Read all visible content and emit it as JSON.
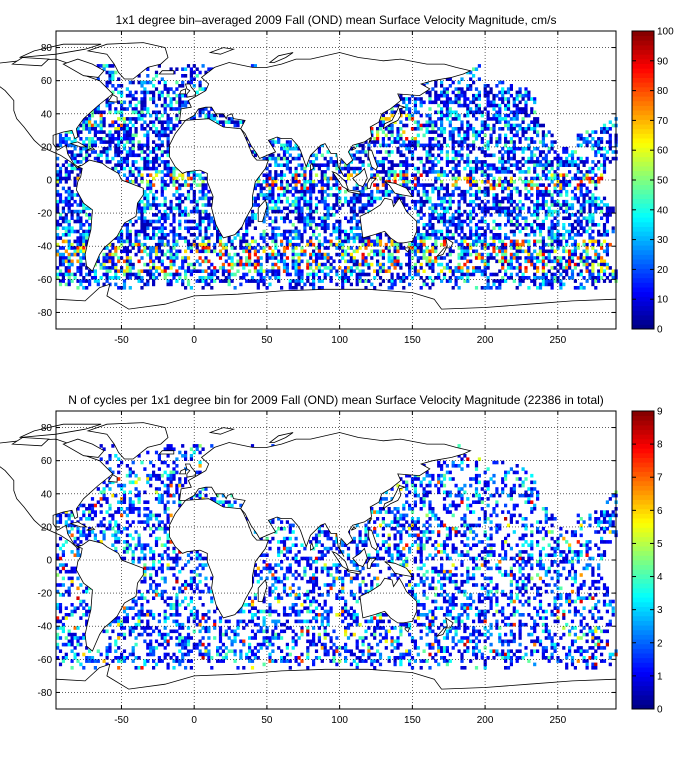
{
  "chart_data": [
    {
      "type": "heatmap",
      "title": "1x1 degree bin–averaged 2009 Fall (OND) mean Surface Velocity Magnitude, cm/s",
      "xlim": [
        -95,
        290
      ],
      "ylim": [
        -90,
        90
      ],
      "x_ticks": [
        -50,
        0,
        50,
        100,
        150,
        200,
        250
      ],
      "y_ticks": [
        80,
        60,
        40,
        20,
        0,
        -20,
        -40,
        -60,
        -80
      ],
      "grid": true,
      "grid_style": "dotted",
      "coastlines": true,
      "colorbar": {
        "min": 0,
        "max": 100,
        "ticks": [
          0,
          10,
          20,
          30,
          40,
          50,
          60,
          70,
          80,
          90,
          100
        ],
        "colormap": "jet",
        "placement": "right"
      },
      "seed": 7,
      "density": 0.55
    },
    {
      "type": "heatmap",
      "title": "N of cycles per 1x1 degree bin for 2009 Fall (OND) mean Surface Velocity Magnitude (22386 in total)",
      "xlim": [
        -95,
        290
      ],
      "ylim": [
        -90,
        90
      ],
      "x_ticks": [
        -50,
        0,
        50,
        100,
        150,
        200,
        250
      ],
      "y_ticks": [
        80,
        60,
        40,
        20,
        0,
        -20,
        -40,
        -60,
        -80
      ],
      "grid": true,
      "grid_style": "dotted",
      "coastlines": true,
      "colorbar": {
        "min": 0,
        "max": 9,
        "ticks": [
          0,
          1,
          2,
          3,
          4,
          5,
          6,
          7,
          8,
          9
        ],
        "colormap": "jet",
        "placement": "right"
      },
      "seed": 19,
      "density": 0.38
    }
  ],
  "colors": {
    "coast": "#000000",
    "grid": "#000000",
    "background": "#ffffff"
  }
}
